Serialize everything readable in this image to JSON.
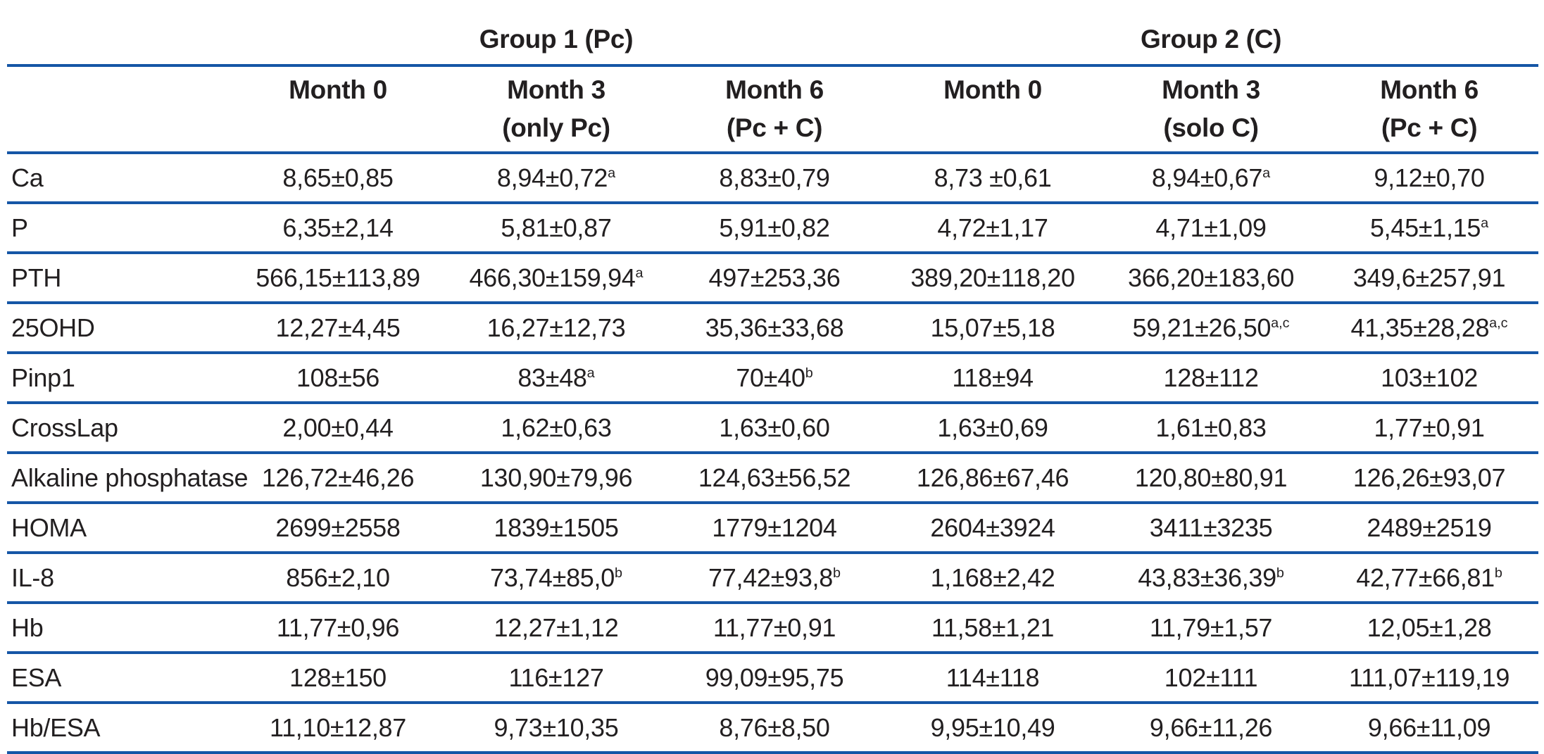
{
  "colors": {
    "rule_blue": "#1556a6",
    "text": "#221f20",
    "background": "#ffffff"
  },
  "table": {
    "group_headers": [
      {
        "label": "Group 1 (Pc)"
      },
      {
        "label": "Group 2 (C)"
      }
    ],
    "column_headers": [
      {
        "line1": "Month 0",
        "line2": ""
      },
      {
        "line1": "Month 3",
        "line2": "(only Pc)"
      },
      {
        "line1": "Month 6",
        "line2": "(Pc + C)"
      },
      {
        "line1": "Month 0",
        "line2": ""
      },
      {
        "line1": "Month 3",
        "line2": "(solo C)"
      },
      {
        "line1": "Month 6",
        "line2": "(Pc + C)"
      }
    ],
    "rows": [
      {
        "label": "Ca",
        "values": [
          {
            "v": "8,65±0,85",
            "s": ""
          },
          {
            "v": "8,94±0,72",
            "s": "a"
          },
          {
            "v": "8,83±0,79",
            "s": ""
          },
          {
            "v": "8,73 ±0,61",
            "s": ""
          },
          {
            "v": "8,94±0,67",
            "s": "a"
          },
          {
            "v": "9,12±0,70",
            "s": ""
          }
        ]
      },
      {
        "label": "P",
        "values": [
          {
            "v": "6,35±2,14",
            "s": ""
          },
          {
            "v": "5,81±0,87",
            "s": ""
          },
          {
            "v": "5,91±0,82",
            "s": ""
          },
          {
            "v": "4,72±1,17",
            "s": ""
          },
          {
            "v": "4,71±1,09",
            "s": ""
          },
          {
            "v": "5,45±1,15",
            "s": "a"
          }
        ]
      },
      {
        "label": "PTH",
        "values": [
          {
            "v": "566,15±113,89",
            "s": ""
          },
          {
            "v": "466,30±159,94",
            "s": "a"
          },
          {
            "v": "497±253,36",
            "s": ""
          },
          {
            "v": "389,20±118,20",
            "s": ""
          },
          {
            "v": "366,20±183,60",
            "s": ""
          },
          {
            "v": "349,6±257,91",
            "s": ""
          }
        ]
      },
      {
        "label": "25OHD",
        "values": [
          {
            "v": "12,27±4,45",
            "s": ""
          },
          {
            "v": "16,27±12,73",
            "s": ""
          },
          {
            "v": "35,36±33,68",
            "s": ""
          },
          {
            "v": "15,07±5,18",
            "s": ""
          },
          {
            "v": "59,21±26,50",
            "s": "a,c"
          },
          {
            "v": "41,35±28,28",
            "s": "a,c"
          }
        ]
      },
      {
        "label": "Pinp1",
        "values": [
          {
            "v": "108±56",
            "s": ""
          },
          {
            "v": "83±48",
            "s": "a"
          },
          {
            "v": "70±40",
            "s": "b"
          },
          {
            "v": "118±94",
            "s": ""
          },
          {
            "v": "128±112",
            "s": ""
          },
          {
            "v": "103±102",
            "s": ""
          }
        ]
      },
      {
        "label": "CrossLap",
        "values": [
          {
            "v": "2,00±0,44",
            "s": ""
          },
          {
            "v": "1,62±0,63",
            "s": ""
          },
          {
            "v": "1,63±0,60",
            "s": ""
          },
          {
            "v": "1,63±0,69",
            "s": ""
          },
          {
            "v": "1,61±0,83",
            "s": ""
          },
          {
            "v": "1,77±0,91",
            "s": ""
          }
        ]
      },
      {
        "label": "Alkaline phosphatase",
        "values": [
          {
            "v": "126,72±46,26",
            "s": ""
          },
          {
            "v": "130,90±79,96",
            "s": ""
          },
          {
            "v": "124,63±56,52",
            "s": ""
          },
          {
            "v": "126,86±67,46",
            "s": ""
          },
          {
            "v": "120,80±80,91",
            "s": ""
          },
          {
            "v": "126,26±93,07",
            "s": ""
          }
        ]
      },
      {
        "label": "HOMA",
        "values": [
          {
            "v": "2699±2558",
            "s": ""
          },
          {
            "v": "1839±1505",
            "s": ""
          },
          {
            "v": "1779±1204",
            "s": ""
          },
          {
            "v": "2604±3924",
            "s": ""
          },
          {
            "v": "3411±3235",
            "s": ""
          },
          {
            "v": "2489±2519",
            "s": ""
          }
        ]
      },
      {
        "label": "IL-8",
        "values": [
          {
            "v": "856±2,10",
            "s": ""
          },
          {
            "v": "73,74±85,0",
            "s": "b"
          },
          {
            "v": "77,42±93,8",
            "s": "b"
          },
          {
            "v": "1,168±2,42",
            "s": ""
          },
          {
            "v": "43,83±36,39",
            "s": "b"
          },
          {
            "v": "42,77±66,81",
            "s": "b"
          }
        ]
      },
      {
        "label": "Hb",
        "values": [
          {
            "v": "11,77±0,96",
            "s": ""
          },
          {
            "v": "12,27±1,12",
            "s": ""
          },
          {
            "v": "11,77±0,91",
            "s": ""
          },
          {
            "v": "11,58±1,21",
            "s": ""
          },
          {
            "v": "11,79±1,57",
            "s": ""
          },
          {
            "v": "12,05±1,28",
            "s": ""
          }
        ]
      },
      {
        "label": "ESA",
        "values": [
          {
            "v": "128±150",
            "s": ""
          },
          {
            "v": "116±127",
            "s": ""
          },
          {
            "v": "99,09±95,75",
            "s": ""
          },
          {
            "v": "114±118",
            "s": ""
          },
          {
            "v": "102±111",
            "s": ""
          },
          {
            "v": "111,07±119,19",
            "s": ""
          }
        ]
      },
      {
        "label": "Hb/ESA",
        "values": [
          {
            "v": "11,10±12,87",
            "s": ""
          },
          {
            "v": "9,73±10,35",
            "s": ""
          },
          {
            "v": "8,76±8,50",
            "s": ""
          },
          {
            "v": "9,95±10,49",
            "s": ""
          },
          {
            "v": "9,66±11,26",
            "s": ""
          },
          {
            "v": "9,66±11,09",
            "s": ""
          }
        ]
      }
    ]
  }
}
